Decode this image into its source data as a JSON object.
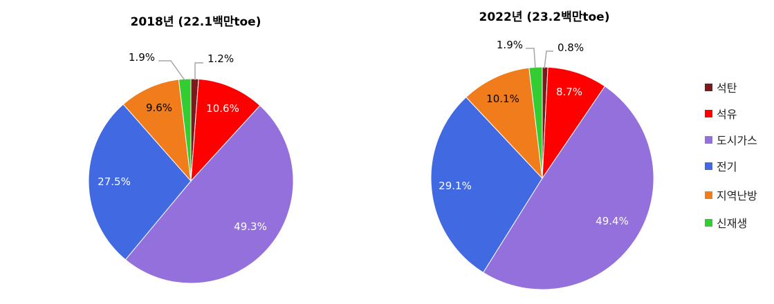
{
  "chart_data": [
    {
      "type": "pie",
      "title": "2018년 (22.1백만toe)",
      "categories": [
        "석탄",
        "석유",
        "도시가스",
        "전기",
        "지역난방",
        "신재생"
      ],
      "values": [
        1.2,
        10.6,
        49.3,
        27.5,
        9.6,
        1.9
      ],
      "labels": [
        "1.2%",
        "10.6%",
        "49.3%",
        "27.5%",
        "9.6%",
        "1.9%"
      ]
    },
    {
      "type": "pie",
      "title": "2022년 (23.2백만toe)",
      "categories": [
        "석탄",
        "석유",
        "도시가스",
        "전기",
        "지역난방",
        "신재생"
      ],
      "values": [
        0.8,
        8.7,
        49.4,
        29.1,
        10.1,
        1.9
      ],
      "labels": [
        "0.8%",
        "8.7%",
        "49.4%",
        "29.1%",
        "10.1%",
        "1.9%"
      ]
    }
  ],
  "legend": {
    "placement": "right",
    "items": [
      "석탄",
      "석유",
      "도시가스",
      "전기",
      "지역난방",
      "신재생"
    ]
  },
  "colors": [
    "#7a1a1a",
    "#ff0000",
    "#9370db",
    "#4169e1",
    "#f07c1b",
    "#33cc33"
  ]
}
